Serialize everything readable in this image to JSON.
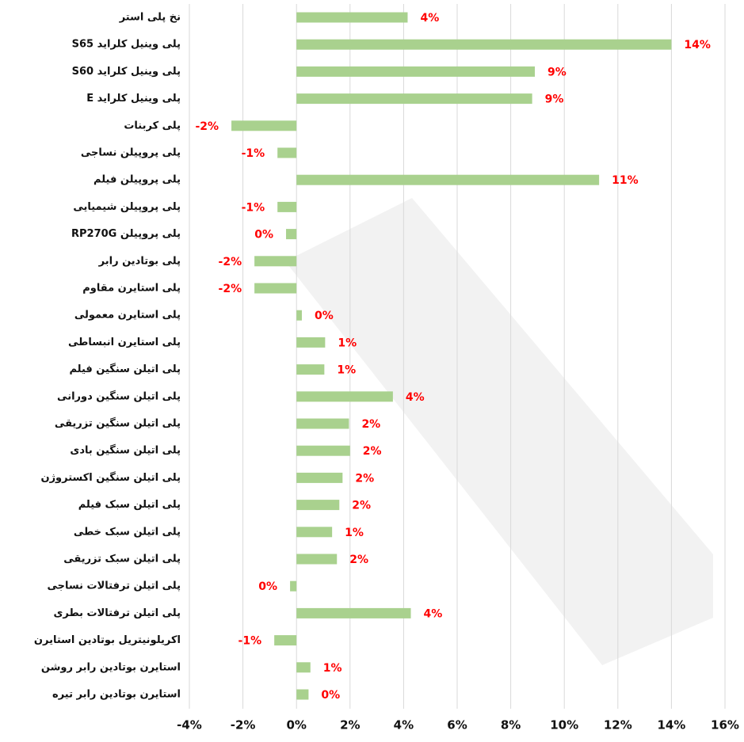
{
  "chart_data": {
    "type": "barh",
    "categories": [
      "نخ پلی استر",
      "پلی وینیل کلراید S65",
      "پلی وینیل کلراید S60",
      "پلی وینیل کلراید E",
      "پلی کربنات",
      "پلی پروپیلن نساجی",
      "پلی پروپیلن فیلم",
      "پلی پروپیلن شیمیایی",
      "پلی پروپیلن RP270G",
      "پلی بوتادین رابر",
      "پلی استایرن مقاوم",
      "پلی استایرن معمولی",
      "پلی استایرن انبساطی",
      "پلی اتیلن سنگین فیلم",
      "پلی اتیلن سنگین دورانی",
      "پلی اتیلن سنگین تزریقی",
      "پلی اتیلن سنگین بادی",
      "پلی اتیلن سنگین اکستروژن",
      "پلی اتیلن سبک فیلم",
      "پلی اتیلن سبک خطی",
      "پلی اتیلن سبک تزریقی",
      "پلی اتیلن ترفتالات نساجی",
      "پلی اتیلن ترفتالات بطری",
      "اکریلونیتریل بوتادین استایرن",
      "استایرن بوتادین رابر روشن",
      "استایرن بوتادین رابر تیره"
    ],
    "values": [
      4.15,
      14.0,
      8.9,
      8.8,
      -2.43,
      -0.71,
      11.3,
      -0.71,
      -0.39,
      -1.57,
      -1.57,
      0.2,
      1.07,
      1.04,
      3.6,
      1.96,
      2.0,
      1.72,
      1.6,
      1.33,
      1.51,
      -0.24,
      4.27,
      -0.83,
      0.52,
      0.45
    ],
    "value_labels": [
      "4%",
      "14%",
      "9%",
      "9%",
      "-2%",
      "-1%",
      "11%",
      "-1%",
      "0%",
      "-2%",
      "-2%",
      "0%",
      "1%",
      "1%",
      "4%",
      "2%",
      "2%",
      "2%",
      "2%",
      "1%",
      "2%",
      "0%",
      "4%",
      "-1%",
      "1%",
      "0%"
    ],
    "color": "#a9d18e",
    "xlim": [
      -4,
      16
    ],
    "xticks": [
      {
        "value": -4,
        "label": "-4%"
      },
      {
        "value": -2,
        "label": "-2%"
      },
      {
        "value": 0,
        "label": "0%"
      },
      {
        "value": 2,
        "label": "2%"
      },
      {
        "value": 4,
        "label": "4%"
      },
      {
        "value": 6,
        "label": "6%"
      },
      {
        "value": 8,
        "label": "8%"
      },
      {
        "value": 10,
        "label": "10%"
      },
      {
        "value": 12,
        "label": "12%"
      },
      {
        "value": 14,
        "label": "14%"
      },
      {
        "value": 16,
        "label": "16%"
      }
    ],
    "grid": true
  }
}
